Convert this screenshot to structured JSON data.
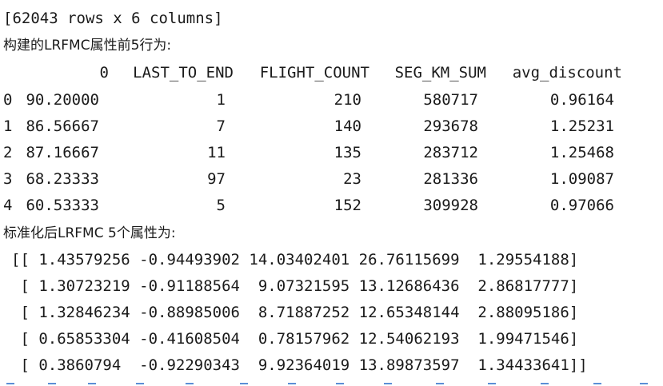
{
  "shape_line": "[62043 rows x 6 columns]",
  "lrfmc_title": "构建的LRFMC属性前5行为:",
  "table": {
    "columns": [
      "0",
      "LAST_TO_END",
      "FLIGHT_COUNT",
      "SEG_KM_SUM",
      "avg_discount"
    ],
    "rows": [
      {
        "index": "0",
        "cells": [
          "90.20000",
          "1",
          "210",
          "580717",
          "0.96164"
        ]
      },
      {
        "index": "1",
        "cells": [
          "86.56667",
          "7",
          "140",
          "293678",
          "1.25231"
        ]
      },
      {
        "index": "2",
        "cells": [
          "87.16667",
          "11",
          "135",
          "283712",
          "1.25468"
        ]
      },
      {
        "index": "3",
        "cells": [
          "68.23333",
          "97",
          "23",
          "281336",
          "1.09087"
        ]
      },
      {
        "index": "4",
        "cells": [
          "60.53333",
          "5",
          "152",
          "309928",
          "0.97066"
        ]
      }
    ]
  },
  "std_title": "标准化后LRFMC 5个属性为:",
  "array_lines": [
    "[[ 1.43579256 -0.94493902 14.03402401 26.76115699  1.29554188]",
    " [ 1.30723219 -0.91188564  9.07321595 13.12686436  2.86817777]",
    " [ 1.32846234 -0.88985006  8.71887252 12.65348144  2.88095186]",
    " [ 0.65853304 -0.41608504  0.78157962 12.54062193  1.99471546]",
    " [ 0.3860794  -0.92290343  9.92364019 13.89873597  1.34433641]]"
  ]
}
